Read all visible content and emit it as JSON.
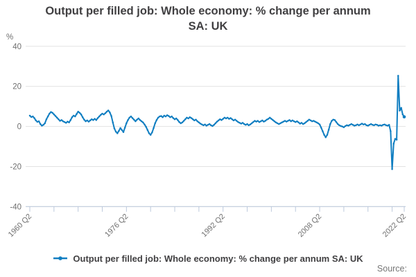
{
  "title": {
    "line1": "Output per filled job: Whole economy: % change per annum",
    "line2": "SA: UK"
  },
  "y_axis": {
    "unit": "%",
    "ticks": [
      40,
      20,
      0,
      -20,
      -40
    ]
  },
  "x_axis": {
    "labels": [
      "1960 Q2",
      "1976 Q2",
      "1992 Q2",
      "2008 Q2",
      "2022 Q2"
    ]
  },
  "legend": {
    "label": "Output per filled job: Whole economy: % change per annum SA: UK"
  },
  "footer": {
    "source_label": "Source:"
  },
  "colors": {
    "line": "#107EC1",
    "grid": "#e2e2e2",
    "axis": "#bcc9dc",
    "tick_label": "#6f6f6f",
    "title_text": "#414042",
    "source_text": "#767676"
  },
  "chart_data": {
    "type": "line",
    "title": "Output per filled job: Whole economy: % change per annum SA: UK",
    "ylabel": "%",
    "ylim": [
      -40,
      40
    ],
    "y_ticks": [
      40,
      20,
      0,
      -20,
      -40
    ],
    "grid": "horizontal-only",
    "legend_position": "bottom-center",
    "frequency": "quarterly",
    "x_start": "1960 Q2",
    "x_end": "2022 Q2",
    "x_tick_interval_years": 4,
    "x_tick_labels": [
      "1960 Q2",
      "1976 Q2",
      "1992 Q2",
      "2008 Q2",
      "2022 Q2"
    ],
    "labeled_tick_positions": [
      0,
      4,
      8,
      12
    ],
    "values": [
      5.4,
      4.7,
      5.0,
      4.2,
      3.0,
      2.3,
      2.6,
      1.2,
      0.4,
      0.8,
      1.6,
      3.6,
      5.0,
      6.4,
      7.2,
      6.8,
      6.0,
      5.2,
      4.4,
      3.6,
      2.8,
      3.2,
      2.6,
      2.2,
      1.8,
      2.4,
      2.0,
      3.2,
      4.6,
      5.4,
      5.0,
      6.2,
      7.4,
      6.8,
      6.0,
      4.6,
      3.4,
      2.6,
      3.0,
      2.4,
      3.0,
      3.6,
      3.2,
      3.8,
      3.2,
      4.2,
      5.0,
      5.8,
      6.4,
      6.0,
      6.6,
      7.4,
      8.0,
      7.0,
      5.2,
      2.0,
      -1.0,
      -2.6,
      -3.4,
      -2.2,
      -0.8,
      -1.8,
      -2.8,
      -0.6,
      1.6,
      3.2,
      4.4,
      5.0,
      4.2,
      3.4,
      2.6,
      3.4,
      4.0,
      3.2,
      2.6,
      2.0,
      1.0,
      -0.2,
      -1.8,
      -3.4,
      -4.2,
      -3.0,
      -0.8,
      1.6,
      3.2,
      4.4,
      5.0,
      5.2,
      4.6,
      5.4,
      5.0,
      5.6,
      5.2,
      4.6,
      5.0,
      4.2,
      3.6,
      4.0,
      3.2,
      2.2,
      1.6,
      2.0,
      2.8,
      3.6,
      4.4,
      4.0,
      4.6,
      4.2,
      3.6,
      3.0,
      3.4,
      2.6,
      2.0,
      1.4,
      1.0,
      0.6,
      1.0,
      0.4,
      0.8,
      1.2,
      0.6,
      0.2,
      0.8,
      1.6,
      2.4,
      3.0,
      3.6,
      3.2,
      3.8,
      4.4,
      4.0,
      4.4,
      3.8,
      4.2,
      3.6,
      3.0,
      3.4,
      2.8,
      2.2,
      1.8,
      1.4,
      1.8,
      1.2,
      0.8,
      1.2,
      0.6,
      1.0,
      1.6,
      2.2,
      2.8,
      2.4,
      2.8,
      2.2,
      2.6,
      3.0,
      2.4,
      2.8,
      3.4,
      3.8,
      4.4,
      3.8,
      3.2,
      2.6,
      2.0,
      1.6,
      1.2,
      1.6,
      2.0,
      2.4,
      2.8,
      2.4,
      2.8,
      3.2,
      2.6,
      3.0,
      2.6,
      2.2,
      2.6,
      2.0,
      1.4,
      1.8,
      1.2,
      1.6,
      2.2,
      2.8,
      3.4,
      3.0,
      2.6,
      2.8,
      2.4,
      2.0,
      1.6,
      1.0,
      -0.6,
      -2.4,
      -4.2,
      -5.4,
      -4.2,
      -1.6,
      1.2,
      2.8,
      3.4,
      3.2,
      2.2,
      1.2,
      0.6,
      0.2,
      0.0,
      -0.4,
      0.2,
      0.6,
      0.4,
      0.8,
      1.2,
      0.8,
      0.4,
      0.6,
      1.0,
      0.6,
      1.0,
      1.4,
      1.0,
      1.2,
      0.6,
      0.4,
      0.8,
      1.2,
      0.8,
      0.6,
      1.0,
      0.8,
      0.4,
      0.6,
      0.4,
      0.8,
      1.0,
      0.6,
      0.4,
      0.8,
      -2.4,
      -21.3,
      -8.6,
      -6.2,
      -6.6,
      25.3,
      7.9,
      9.3,
      6.0,
      4.8
    ]
  }
}
